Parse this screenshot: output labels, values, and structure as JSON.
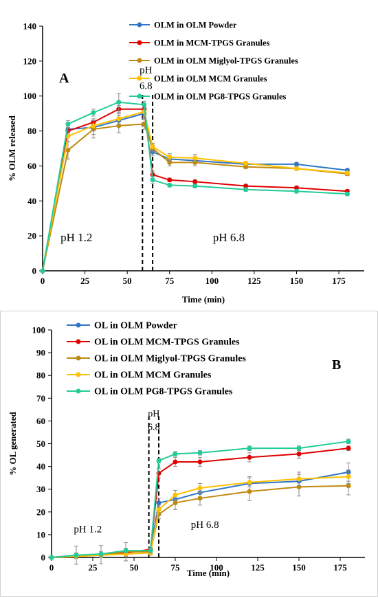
{
  "chart_data": [
    {
      "type": "line",
      "panel_label": "A",
      "xlabel": "Time (min)",
      "ylabel": "% OLM released",
      "xlim": [
        0,
        190
      ],
      "ylim": [
        0,
        140
      ],
      "xticks": [
        0,
        25,
        50,
        75,
        100,
        125,
        150,
        175
      ],
      "yticks": [
        0,
        20,
        40,
        60,
        80,
        100,
        120,
        140
      ],
      "legend_position": "top-right",
      "annotations": [
        {
          "text": "pH 1.2",
          "x": 20,
          "y": 17
        },
        {
          "text": "pH 6.8",
          "x": 110,
          "y": 17
        },
        {
          "text": "pH",
          "x": 61,
          "y": 113
        },
        {
          "text": "6.8",
          "x": 61,
          "y": 104
        }
      ],
      "ph_lines": [
        59,
        65
      ],
      "series": [
        {
          "name": "OLM in OLM Powder",
          "color": "#2e75c6",
          "x": [
            0,
            15,
            30,
            45,
            60,
            65,
            75,
            90,
            120,
            150,
            180
          ],
          "y": [
            0,
            81,
            82,
            86,
            90,
            68,
            64,
            63,
            61,
            61,
            57.5
          ],
          "err": [
            0,
            3,
            4,
            3,
            3,
            2,
            2,
            2,
            1,
            1,
            1
          ]
        },
        {
          "name": "OLM in MCM-TPGS Granules",
          "color": "#e00000",
          "x": [
            0,
            15,
            30,
            45,
            60,
            65,
            75,
            90,
            120,
            150,
            180
          ],
          "y": [
            0,
            80,
            85,
            92.5,
            92.5,
            55,
            52,
            51,
            48.5,
            47.5,
            45.5
          ],
          "err": [
            0,
            3,
            2,
            2,
            2,
            2,
            1,
            1,
            1,
            1,
            1
          ]
        },
        {
          "name": "OLM in OLM Miglyol-TPGS Granules",
          "color": "#bf8a10",
          "x": [
            0,
            15,
            30,
            45,
            60,
            65,
            75,
            90,
            120,
            150,
            180
          ],
          "y": [
            0,
            69,
            81,
            83,
            84,
            70,
            62,
            62,
            59.5,
            58.5,
            55.5
          ],
          "err": [
            0,
            5,
            5,
            4,
            3,
            2,
            2,
            2,
            1,
            1,
            1
          ]
        },
        {
          "name": "OLM in OLM MCM Granules",
          "color": "#ffc000",
          "x": [
            0,
            15,
            30,
            45,
            60,
            65,
            75,
            90,
            120,
            150,
            180
          ],
          "y": [
            0,
            77,
            83,
            87,
            91,
            71,
            65,
            64.5,
            61.5,
            58.5,
            56
          ],
          "err": [
            0,
            3,
            3,
            3,
            3,
            2,
            2,
            2,
            1,
            1,
            1
          ]
        },
        {
          "name": "OLM in OLM PG8-TPGS Granules",
          "color": "#22cc99",
          "x": [
            0,
            15,
            30,
            45,
            60,
            65,
            75,
            90,
            120,
            150,
            180
          ],
          "y": [
            0,
            84,
            90.5,
            96.5,
            95,
            52,
            49,
            48.5,
            46.5,
            45.5,
            44
          ],
          "err": [
            0,
            2,
            2,
            5,
            2,
            2,
            1,
            1,
            1,
            1,
            1
          ]
        }
      ]
    },
    {
      "type": "line",
      "panel_label": "B",
      "xlabel": "Time (min)",
      "ylabel": "% OL generated",
      "xlim": [
        0,
        190
      ],
      "ylim": [
        0,
        100
      ],
      "xticks": [
        0,
        25,
        50,
        75,
        100,
        125,
        150,
        175
      ],
      "yticks": [
        0,
        10,
        20,
        30,
        40,
        50,
        60,
        70,
        80,
        90,
        100
      ],
      "legend_position": "top-left",
      "annotations": [
        {
          "text": "pH 1.2",
          "x": 22,
          "y": 11
        },
        {
          "text": "pH 6.8",
          "x": 93,
          "y": 13
        },
        {
          "text": "pH",
          "x": 62,
          "y": 62
        },
        {
          "text": "6.8",
          "x": 62,
          "y": 56
        }
      ],
      "ph_lines": [
        59,
        65
      ],
      "series": [
        {
          "name": "OL in OLM Powder",
          "color": "#2e75c6",
          "x": [
            0,
            15,
            30,
            45,
            60,
            65,
            75,
            90,
            120,
            150,
            180
          ],
          "y": [
            0,
            1,
            1.2,
            2.5,
            3,
            24,
            25.5,
            28.5,
            32.5,
            33.5,
            37.5
          ],
          "err": [
            0,
            4,
            4,
            4,
            1,
            2,
            2,
            2,
            3,
            3,
            4
          ]
        },
        {
          "name": "OL in OLM MCM-TPGS Granules",
          "color": "#e00000",
          "x": [
            0,
            15,
            30,
            45,
            60,
            65,
            75,
            90,
            120,
            150,
            180
          ],
          "y": [
            0,
            0.8,
            1,
            2,
            3.5,
            37,
            42,
            42,
            44,
            45.5,
            48
          ],
          "err": [
            0,
            1,
            1,
            1,
            1,
            2,
            2,
            2,
            2,
            2,
            1
          ]
        },
        {
          "name": "OL in OLM Miglyol-TPGS Granules",
          "color": "#bf8a10",
          "x": [
            0,
            15,
            30,
            45,
            60,
            65,
            75,
            90,
            120,
            150,
            180
          ],
          "y": [
            0,
            0.5,
            1,
            2.5,
            2.5,
            19,
            24,
            26,
            29,
            31,
            31.5
          ],
          "err": [
            0,
            1,
            1,
            4,
            1,
            2,
            3,
            3,
            4,
            4,
            4
          ]
        },
        {
          "name": "OL in OLM MCM Granules",
          "color": "#ffc000",
          "x": [
            0,
            15,
            30,
            45,
            60,
            65,
            75,
            90,
            120,
            150,
            180
          ],
          "y": [
            0,
            0.5,
            1,
            1.5,
            2,
            21,
            27.5,
            30.5,
            33,
            34.5,
            35.5
          ],
          "err": [
            0,
            1,
            1,
            1,
            1,
            2,
            2,
            2,
            2,
            3,
            3
          ]
        },
        {
          "name": "OL in OLM PG8-TPGS Granules",
          "color": "#22cc99",
          "x": [
            0,
            15,
            30,
            45,
            60,
            65,
            75,
            90,
            120,
            150,
            180
          ],
          "y": [
            0,
            1,
            1.5,
            3,
            3,
            42.5,
            45.5,
            46,
            48,
            48,
            51
          ],
          "err": [
            0,
            1,
            1,
            1,
            1,
            1,
            1,
            1,
            1,
            1,
            1
          ]
        }
      ]
    }
  ]
}
